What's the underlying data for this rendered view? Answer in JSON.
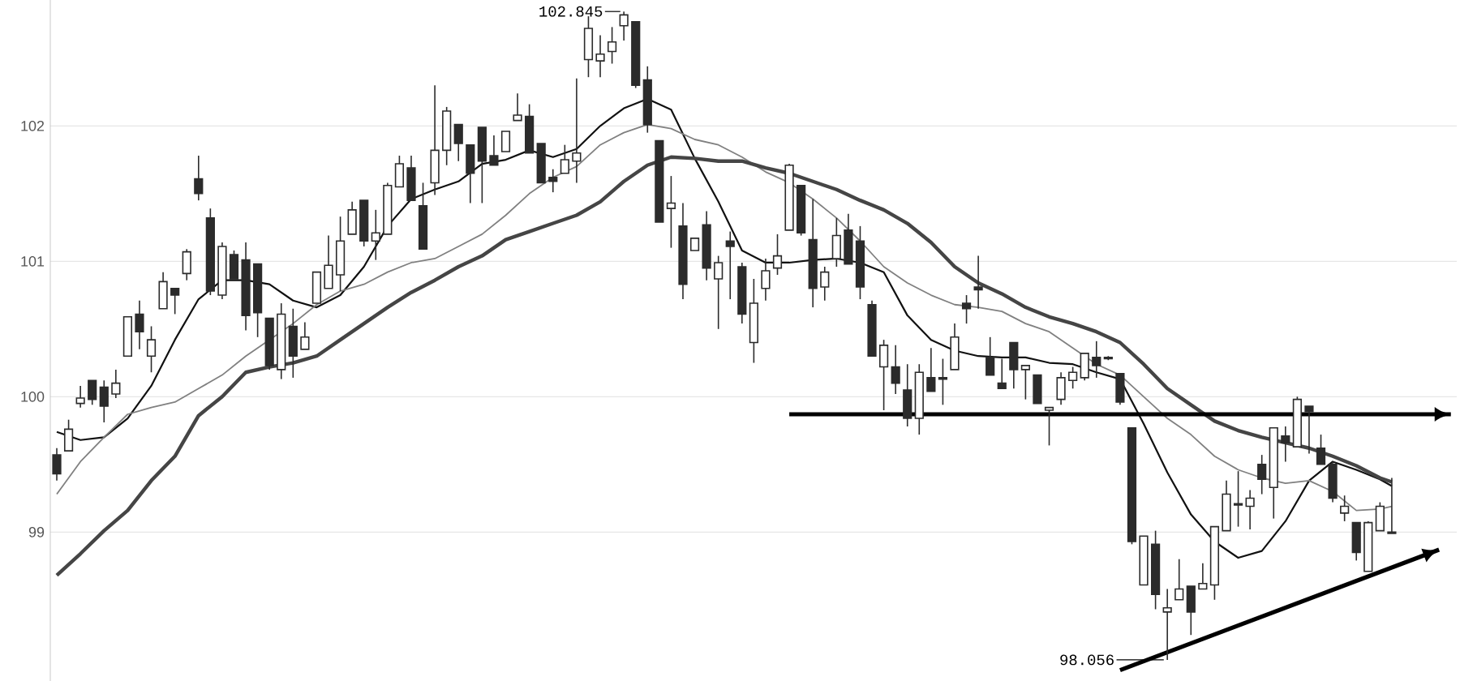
{
  "chart_data": {
    "type": "candlestick",
    "color": "#2b2b2b",
    "grid": "y",
    "ylim": [
      97.9,
      102.93
    ],
    "yticks": [
      99,
      100,
      101,
      102
    ],
    "categories": [
      null,
      null,
      null,
      null,
      null,
      null,
      null,
      null,
      null,
      null,
      null,
      null,
      null,
      null,
      null,
      null,
      null,
      null,
      null,
      null,
      null,
      null,
      null,
      null,
      null,
      null,
      null,
      null,
      null,
      null,
      null,
      null,
      null,
      null,
      null,
      null,
      null,
      null,
      null,
      null,
      null,
      null,
      null,
      null,
      null,
      null,
      null,
      null,
      null,
      null,
      null,
      null,
      null,
      null,
      null,
      null,
      null,
      null,
      null,
      null,
      null,
      null,
      null,
      null,
      null,
      null,
      null,
      null,
      null,
      null,
      null,
      null,
      null,
      null,
      null,
      null,
      null,
      null,
      null,
      null,
      null,
      null,
      null,
      null,
      null,
      null,
      null,
      null,
      null,
      null,
      null,
      null,
      null,
      null,
      null,
      null,
      null,
      null,
      null,
      null,
      null,
      null,
      null,
      null,
      null,
      null,
      null,
      null,
      null,
      null,
      null,
      null,
      null,
      null,
      null,
      null,
      null,
      null,
      null
    ],
    "ohlc": [
      [
        99.57,
        99.62,
        99.38,
        99.43
      ],
      [
        99.6,
        99.83,
        99.6,
        99.76
      ],
      [
        99.95,
        100.08,
        99.92,
        99.99
      ],
      [
        100.12,
        100.12,
        99.94,
        99.98
      ],
      [
        100.07,
        100.12,
        99.81,
        99.93
      ],
      [
        100.02,
        100.2,
        99.99,
        100.1
      ],
      [
        100.3,
        100.59,
        100.3,
        100.59
      ],
      [
        100.61,
        100.71,
        100.35,
        100.48
      ],
      [
        100.3,
        100.52,
        100.18,
        100.42
      ],
      [
        100.65,
        100.92,
        100.65,
        100.85
      ],
      [
        100.8,
        100.8,
        100.61,
        100.75
      ],
      [
        100.91,
        101.09,
        100.86,
        101.07
      ],
      [
        101.61,
        101.78,
        101.45,
        101.5
      ],
      [
        101.32,
        101.39,
        100.75,
        100.78
      ],
      [
        100.75,
        101.14,
        100.72,
        101.11
      ],
      [
        101.05,
        101.08,
        100.87,
        100.87
      ],
      [
        101.01,
        101.14,
        100.49,
        100.6
      ],
      [
        100.98,
        100.98,
        100.44,
        100.62
      ],
      [
        100.58,
        100.58,
        100.2,
        100.23
      ],
      [
        100.2,
        100.69,
        100.13,
        100.61
      ],
      [
        100.52,
        100.65,
        100.14,
        100.3
      ],
      [
        100.35,
        100.55,
        100.35,
        100.44
      ],
      [
        100.69,
        100.92,
        100.69,
        100.92
      ],
      [
        100.8,
        101.19,
        100.8,
        100.97
      ],
      [
        100.9,
        101.33,
        100.78,
        101.15
      ],
      [
        101.2,
        101.44,
        101.2,
        101.38
      ],
      [
        101.45,
        101.45,
        101.11,
        101.15
      ],
      [
        101.15,
        101.38,
        101.01,
        101.21
      ],
      [
        101.2,
        101.58,
        101.2,
        101.56
      ],
      [
        101.55,
        101.78,
        101.55,
        101.72
      ],
      [
        101.69,
        101.78,
        101.45,
        101.45
      ],
      [
        101.41,
        101.58,
        101.09,
        101.09
      ],
      [
        101.58,
        102.3,
        101.49,
        101.82
      ],
      [
        101.82,
        102.14,
        101.71,
        102.11
      ],
      [
        102.01,
        102.01,
        101.74,
        101.87
      ],
      [
        101.86,
        101.86,
        101.43,
        101.65
      ],
      [
        101.99,
        101.99,
        101.43,
        101.74
      ],
      [
        101.78,
        101.93,
        101.71,
        101.71
      ],
      [
        101.81,
        101.96,
        101.81,
        101.96
      ],
      [
        102.04,
        102.24,
        102.04,
        102.08
      ],
      [
        102.07,
        102.16,
        101.8,
        101.8
      ],
      [
        101.87,
        101.87,
        101.58,
        101.58
      ],
      [
        101.62,
        101.68,
        101.51,
        101.59
      ],
      [
        101.65,
        101.86,
        101.65,
        101.75
      ],
      [
        101.74,
        102.35,
        101.58,
        101.8
      ],
      [
        102.49,
        102.81,
        102.36,
        102.72
      ],
      [
        102.48,
        102.67,
        102.36,
        102.53
      ],
      [
        102.55,
        102.73,
        102.46,
        102.62
      ],
      [
        102.74,
        102.845,
        102.63,
        102.82
      ],
      [
        102.77,
        102.77,
        102.28,
        102.3
      ],
      [
        102.34,
        102.44,
        101.95,
        102.01
      ],
      [
        101.89,
        101.89,
        101.29,
        101.29
      ],
      [
        101.39,
        101.63,
        101.1,
        101.43
      ],
      [
        101.26,
        101.43,
        100.72,
        100.83
      ],
      [
        101.08,
        101.17,
        101.08,
        101.17
      ],
      [
        101.27,
        101.37,
        100.86,
        100.95
      ],
      [
        100.87,
        101.04,
        100.5,
        100.99
      ],
      [
        101.15,
        101.22,
        100.72,
        101.11
      ],
      [
        100.96,
        100.99,
        100.54,
        100.61
      ],
      [
        100.4,
        100.87,
        100.25,
        100.69
      ],
      [
        100.8,
        101.02,
        100.71,
        100.93
      ],
      [
        100.95,
        101.2,
        100.9,
        101.04
      ],
      [
        101.23,
        101.72,
        101.23,
        101.71
      ],
      [
        101.56,
        101.56,
        101.19,
        101.21
      ],
      [
        101.16,
        101.46,
        100.66,
        100.8
      ],
      [
        100.81,
        100.96,
        100.71,
        100.92
      ],
      [
        101.02,
        101.32,
        100.96,
        101.19
      ],
      [
        101.23,
        101.35,
        100.98,
        100.98
      ],
      [
        101.15,
        101.26,
        100.72,
        100.81
      ],
      [
        100.68,
        100.71,
        100.3,
        100.3
      ],
      [
        100.22,
        100.42,
        99.9,
        100.38
      ],
      [
        100.22,
        100.38,
        100.02,
        100.1
      ],
      [
        100.05,
        100.24,
        99.78,
        99.84
      ],
      [
        99.84,
        100.24,
        99.72,
        100.18
      ],
      [
        100.14,
        100.36,
        100.04,
        100.04
      ],
      [
        100.13,
        100.28,
        99.94,
        100.14
      ],
      [
        100.2,
        100.54,
        100.2,
        100.44
      ],
      [
        100.69,
        100.75,
        100.54,
        100.65
      ],
      [
        100.81,
        101.04,
        100.65,
        100.79
      ],
      [
        100.29,
        100.44,
        100.16,
        100.16
      ],
      [
        100.1,
        100.28,
        100.06,
        100.06
      ],
      [
        100.4,
        100.4,
        100.06,
        100.2
      ],
      [
        100.2,
        100.23,
        99.98,
        100.23
      ],
      [
        100.16,
        100.16,
        99.95,
        99.95
      ],
      [
        99.9,
        99.92,
        99.64,
        99.92
      ],
      [
        99.98,
        100.18,
        99.94,
        100.14
      ],
      [
        100.12,
        100.22,
        100.06,
        100.18
      ],
      [
        100.14,
        100.32,
        100.12,
        100.32
      ],
      [
        100.29,
        100.41,
        100.14,
        100.23
      ],
      [
        100.29,
        100.3,
        100.27,
        100.28
      ],
      [
        100.17,
        100.17,
        99.94,
        99.96
      ],
      [
        99.77,
        99.77,
        98.91,
        98.93
      ],
      [
        98.61,
        98.97,
        98.61,
        98.97
      ],
      [
        98.91,
        99.01,
        98.43,
        98.54
      ],
      [
        98.41,
        98.58,
        98.056,
        98.44
      ],
      [
        98.5,
        98.8,
        98.5,
        98.58
      ],
      [
        98.6,
        98.6,
        98.24,
        98.41
      ],
      [
        98.58,
        98.77,
        98.58,
        98.62
      ],
      [
        98.61,
        99.04,
        98.5,
        99.04
      ],
      [
        99.01,
        99.38,
        99.01,
        99.28
      ],
      [
        99.21,
        99.45,
        99.04,
        99.2
      ],
      [
        99.19,
        99.31,
        99.02,
        99.25
      ],
      [
        99.5,
        99.57,
        99.28,
        99.39
      ],
      [
        99.33,
        99.77,
        99.1,
        99.77
      ],
      [
        99.71,
        99.78,
        99.52,
        99.66
      ],
      [
        99.63,
        100.0,
        99.63,
        99.98
      ],
      [
        99.93,
        99.93,
        99.58,
        99.89
      ],
      [
        99.62,
        99.72,
        99.5,
        99.5
      ],
      [
        99.5,
        99.52,
        99.22,
        99.25
      ],
      [
        99.14,
        99.27,
        99.08,
        99.19
      ],
      [
        99.07,
        99.07,
        98.79,
        98.85
      ],
      [
        98.71,
        99.08,
        98.71,
        99.07
      ],
      [
        99.01,
        99.22,
        99.01,
        99.19
      ],
      [
        99.0,
        99.4,
        98.99,
        98.99
      ],
      null,
      null,
      null,
      null,
      null
    ],
    "series": [
      {
        "type": "line",
        "color": "#111111",
        "values": [
          99.74,
          null,
          99.68,
          null,
          99.7,
          null,
          99.84,
          null,
          100.08,
          null,
          100.42,
          null,
          100.72,
          null,
          100.86,
          null,
          100.86,
          null,
          100.83,
          null,
          100.71,
          null,
          100.66,
          null,
          100.75,
          null,
          100.96,
          null,
          101.26,
          null,
          101.46,
          null,
          101.53,
          null,
          101.59,
          null,
          101.72,
          null,
          101.75,
          null,
          101.82,
          null,
          101.77,
          null,
          101.83,
          null,
          102.0,
          null,
          102.13,
          null,
          102.2,
          null,
          102.12,
          null,
          101.76,
          null,
          101.44,
          null,
          101.08,
          null,
          100.99,
          null,
          100.99,
          null,
          101.01,
          null,
          101.02,
          null,
          100.99,
          null,
          100.92,
          null,
          100.6,
          null,
          100.42,
          null,
          100.34,
          null,
          100.3,
          null,
          100.29,
          null,
          100.29,
          null,
          100.25,
          null,
          100.24,
          null,
          100.18,
          null,
          100.13,
          null,
          99.8,
          null,
          99.44,
          null,
          99.13,
          null,
          98.93,
          null,
          98.81,
          null,
          98.86,
          null,
          99.08,
          null,
          99.38,
          null,
          99.52,
          null,
          99.46,
          null,
          99.39,
          99.34,
          null,
          null,
          null,
          null,
          null
        ]
      },
      {
        "type": "line",
        "color": "#808080",
        "values": [
          99.28,
          null,
          99.52,
          null,
          99.7,
          null,
          99.87,
          null,
          99.92,
          null,
          99.96,
          null,
          100.06,
          null,
          100.16,
          null,
          100.3,
          null,
          100.42,
          null,
          100.54,
          null,
          100.68,
          null,
          100.78,
          null,
          100.83,
          null,
          100.92,
          null,
          100.99,
          null,
          101.02,
          null,
          101.11,
          null,
          101.2,
          null,
          101.34,
          null,
          101.5,
          null,
          101.62,
          null,
          101.7,
          null,
          101.86,
          null,
          101.95,
          null,
          102.01,
          null,
          101.98,
          null,
          101.9,
          null,
          101.86,
          null,
          101.77,
          null,
          101.66,
          null,
          101.58,
          null,
          101.46,
          null,
          101.32,
          null,
          101.15,
          null,
          100.96,
          null,
          100.84,
          null,
          100.75,
          null,
          100.68,
          null,
          100.66,
          null,
          100.63,
          null,
          100.54,
          null,
          100.48,
          null,
          100.36,
          null,
          100.24,
          null,
          100.16,
          null,
          100.0,
          null,
          99.84,
          null,
          99.72,
          null,
          99.56,
          null,
          99.46,
          null,
          99.4,
          null,
          99.36,
          null,
          99.38,
          null,
          99.3,
          null,
          99.16,
          null,
          99.17,
          99.19,
          null,
          null,
          null,
          null,
          null
        ]
      },
      {
        "type": "line",
        "color": "#454545",
        "values": [
          98.68,
          null,
          98.84,
          null,
          99.01,
          null,
          99.16,
          null,
          99.38,
          null,
          99.56,
          null,
          99.86,
          null,
          100.0,
          null,
          100.18,
          null,
          100.22,
          null,
          100.25,
          null,
          100.3,
          null,
          100.42,
          null,
          100.54,
          null,
          100.66,
          null,
          100.77,
          null,
          100.86,
          null,
          100.96,
          null,
          101.04,
          null,
          101.16,
          null,
          101.22,
          null,
          101.28,
          null,
          101.34,
          null,
          101.44,
          null,
          101.59,
          null,
          101.71,
          null,
          101.77,
          null,
          101.76,
          null,
          101.74,
          null,
          101.74,
          null,
          101.69,
          null,
          101.65,
          null,
          101.59,
          null,
          101.53,
          null,
          101.45,
          null,
          101.38,
          null,
          101.28,
          null,
          101.14,
          null,
          100.96,
          null,
          100.84,
          null,
          100.76,
          null,
          100.66,
          null,
          100.59,
          null,
          100.54,
          null,
          100.48,
          null,
          100.4,
          null,
          100.24,
          null,
          100.06,
          null,
          99.94,
          null,
          99.82,
          null,
          99.75,
          null,
          99.7,
          null,
          99.66,
          null,
          99.62,
          null,
          99.56,
          null,
          99.49,
          null,
          99.4,
          99.37,
          null,
          null,
          null,
          null,
          null
        ]
      },
      {
        "type": "line",
        "color": "#000000",
        "values": [
          null,
          null,
          null,
          null,
          null,
          null,
          null,
          null,
          null,
          null,
          null,
          null,
          null,
          null,
          null,
          null,
          null,
          null,
          null,
          null,
          null,
          null,
          null,
          null,
          null,
          null,
          null,
          null,
          null,
          null,
          null,
          null,
          null,
          null,
          null,
          null,
          null,
          null,
          null,
          null,
          null,
          null,
          null,
          null,
          null,
          null,
          null,
          null,
          null,
          null,
          null,
          null,
          null,
          null,
          null,
          null,
          null,
          null,
          null,
          null,
          null,
          null,
          99.87,
          null,
          null,
          null,
          null,
          null,
          null,
          null,
          null,
          null,
          null,
          null,
          null,
          null,
          null,
          null,
          null,
          null,
          null,
          null,
          null,
          null,
          null,
          null,
          null,
          null,
          null,
          null,
          null,
          null,
          null,
          null,
          null,
          null,
          null,
          null,
          null,
          null,
          null,
          null,
          null,
          null,
          null,
          null,
          null,
          null,
          null,
          null,
          null,
          null,
          null,
          null,
          null,
          null,
          null,
          null,
          99.87
        ]
      },
      {
        "type": "line",
        "color": "#000000",
        "values": [
          null,
          null,
          null,
          null,
          null,
          null,
          null,
          null,
          null,
          null,
          null,
          null,
          null,
          null,
          null,
          null,
          null,
          null,
          null,
          null,
          null,
          null,
          null,
          null,
          null,
          null,
          null,
          null,
          null,
          null,
          null,
          null,
          null,
          null,
          null,
          null,
          null,
          null,
          null,
          null,
          null,
          null,
          null,
          null,
          null,
          null,
          null,
          null,
          null,
          null,
          null,
          null,
          null,
          null,
          null,
          null,
          null,
          null,
          null,
          null,
          null,
          null,
          null,
          null,
          null,
          null,
          null,
          null,
          null,
          null,
          null,
          null,
          null,
          null,
          null,
          null,
          null,
          null,
          null,
          null,
          null,
          null,
          null,
          null,
          null,
          null,
          null,
          null,
          null,
          null,
          97.98,
          null,
          null,
          null,
          null,
          null,
          null,
          null,
          null,
          null,
          null,
          null,
          null,
          null,
          null,
          null,
          null,
          null,
          null,
          null,
          null,
          null,
          null,
          null,
          null,
          null,
          null,
          98.87,
          null
        ]
      }
    ],
    "annotations": [
      "102.845",
      "98.056"
    ]
  }
}
